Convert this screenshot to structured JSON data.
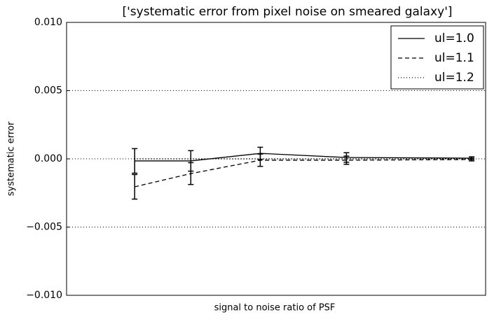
{
  "chart_data": {
    "type": "line",
    "title": "['systematic error from pixel noise on smeared galaxy']",
    "x_label": "signal to noise ratio of PSF",
    "y_label": "systematic error",
    "x": [
      12.5,
      28.5,
      79,
      280,
      1760
    ],
    "xscale": "log",
    "xlim": [
      4.6,
      2160
    ],
    "ylim": [
      -0.01,
      0.01
    ],
    "yticks": [
      {
        "value": -0.01,
        "label": "−0.010"
      },
      {
        "value": -0.005,
        "label": "−0.005"
      },
      {
        "value": 0,
        "label": "0.000"
      },
      {
        "value": 0.005,
        "label": "0.005"
      },
      {
        "value": 0.01,
        "label": "0.010"
      }
    ],
    "grid": true,
    "legend": "upper right",
    "series": [
      {
        "name": "ul=1.0",
        "color": "#000000",
        "linestyle": "solid",
        "values": [
          -0.00015,
          -0.00015,
          0.0004,
          0.0001,
          5e-05
        ],
        "errors": [
          0.0009,
          0.00075,
          0.00045,
          0.00035,
          0.0001
        ]
      },
      {
        "name": "ul=1.1",
        "color": "#000000",
        "linestyle": "dashed",
        "values": [
          -0.00205,
          -0.00108,
          -0.0001,
          -0.0001,
          -5e-05
        ],
        "errors": [
          0.0009,
          0.0008,
          0.00045,
          0.0003,
          0.0001
        ]
      },
      {
        "name": "ul=1.2",
        "color": "#000000",
        "linestyle": "dotted",
        "values": [
          0,
          0,
          0,
          0,
          0
        ]
      }
    ]
  }
}
